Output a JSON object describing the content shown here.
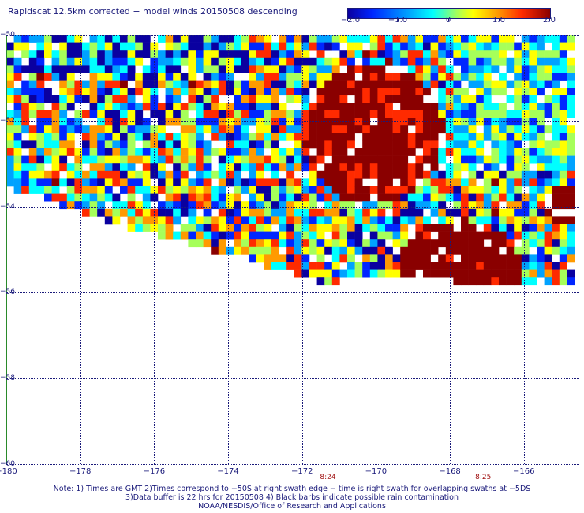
{
  "title": "Rapidscat 12.5km corrected − model winds 20150508 descending",
  "colorbar": {
    "labels": [
      "−2.0",
      "−1.0",
      "0",
      "1.0",
      "2.0"
    ],
    "values": [
      -2.0,
      -1.0,
      0.0,
      1.0,
      2.0
    ],
    "range": [
      -2.0,
      2.0
    ],
    "colors": [
      "#0a00a0",
      "#0026ff",
      "#00a2ff",
      "#00ffff",
      "#a6ff5a",
      "#ffff00",
      "#ff9a00",
      "#ff2a00",
      "#8a0000"
    ]
  },
  "map": {
    "lon_range": [
      -180,
      -164.5
    ],
    "lat_range": [
      -60,
      -50
    ],
    "lon_labels": [
      "−180",
      "−178",
      "−176",
      "−174",
      "−172",
      "−170",
      "−168",
      "−166"
    ],
    "lon_values": [
      -180,
      -178,
      -176,
      -174,
      -172,
      -170,
      -168,
      -166
    ],
    "lat_labels": [
      "−50",
      "−52",
      "−54",
      "−56",
      "−58",
      "−60"
    ],
    "lat_values": [
      -50,
      -52,
      -54,
      -56,
      -58,
      -60
    ],
    "pass_times": [
      {
        "label": "8:24",
        "lon": -171.3
      },
      {
        "label": "8:25",
        "lon": -167.1
      }
    ]
  },
  "notes": [
    "Note: 1) Times are GMT 2)Times correspond to −50S at right swath edge − time is right swath for overlapping swaths at −5DS",
    "3)Data buffer is 22 hrs for 20150508 4) Black barbs indicate possible rain contamination",
    "NOAA/NESDIS/Office of Research and Applications"
  ]
}
